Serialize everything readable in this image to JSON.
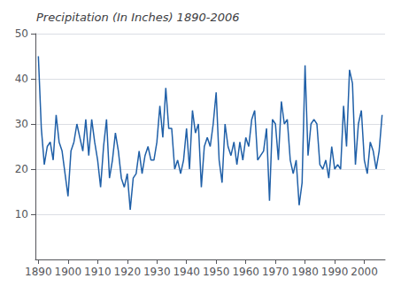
{
  "chart_data": {
    "type": "line",
    "title": "Precipitation (In Inches) 1890-2006",
    "color": "#2060a8",
    "x": [
      1890,
      1891,
      1892,
      1893,
      1894,
      1895,
      1896,
      1897,
      1898,
      1899,
      1900,
      1901,
      1902,
      1903,
      1904,
      1905,
      1906,
      1907,
      1908,
      1909,
      1910,
      1911,
      1912,
      1913,
      1914,
      1915,
      1916,
      1917,
      1918,
      1919,
      1920,
      1921,
      1922,
      1923,
      1924,
      1925,
      1926,
      1927,
      1928,
      1929,
      1930,
      1931,
      1932,
      1933,
      1934,
      1935,
      1936,
      1937,
      1938,
      1939,
      1940,
      1941,
      1942,
      1943,
      1944,
      1945,
      1946,
      1947,
      1948,
      1949,
      1950,
      1951,
      1952,
      1953,
      1954,
      1955,
      1956,
      1957,
      1958,
      1959,
      1960,
      1961,
      1962,
      1963,
      1964,
      1965,
      1966,
      1967,
      1968,
      1969,
      1970,
      1971,
      1972,
      1973,
      1974,
      1975,
      1976,
      1977,
      1978,
      1979,
      1980,
      1981,
      1982,
      1983,
      1984,
      1985,
      1986,
      1987,
      1988,
      1989,
      1990,
      1991,
      1992,
      1993,
      1994,
      1995,
      1996,
      1997,
      1998,
      1999,
      2000,
      2001,
      2002,
      2003,
      2004,
      2005,
      2006
    ],
    "values": [
      45,
      29,
      21,
      25,
      26,
      22,
      32,
      26,
      24,
      19,
      14,
      24,
      26,
      30,
      27,
      24,
      31,
      23,
      31,
      26,
      22,
      16,
      25,
      31,
      18,
      22,
      28,
      24,
      18,
      16,
      19,
      11,
      18,
      19,
      24,
      19,
      23,
      25,
      22,
      22,
      26,
      34,
      27,
      38,
      29,
      29,
      20,
      22,
      19,
      22,
      29,
      20,
      33,
      28,
      30,
      16,
      25,
      27,
      25,
      30,
      37,
      22,
      17,
      30,
      25,
      23,
      26,
      21,
      26,
      22,
      27,
      25,
      31,
      33,
      22,
      23,
      24,
      29,
      13,
      31,
      30,
      22,
      35,
      30,
      31,
      22,
      19,
      22,
      12,
      17,
      43,
      23,
      30,
      31,
      30,
      21,
      20,
      22,
      18,
      25,
      20,
      21,
      20,
      34,
      25,
      42,
      39,
      21,
      30,
      33,
      22,
      19,
      26,
      24,
      20,
      24,
      32
    ],
    "xlim": [
      1889,
      2007
    ],
    "xticks": [
      1890,
      1900,
      1910,
      1920,
      1930,
      1940,
      1950,
      1960,
      1970,
      1980,
      1990,
      2000
    ],
    "ylim": [
      0,
      50
    ],
    "yticks": [
      10,
      20,
      30,
      40,
      50
    ],
    "grid": true
  }
}
